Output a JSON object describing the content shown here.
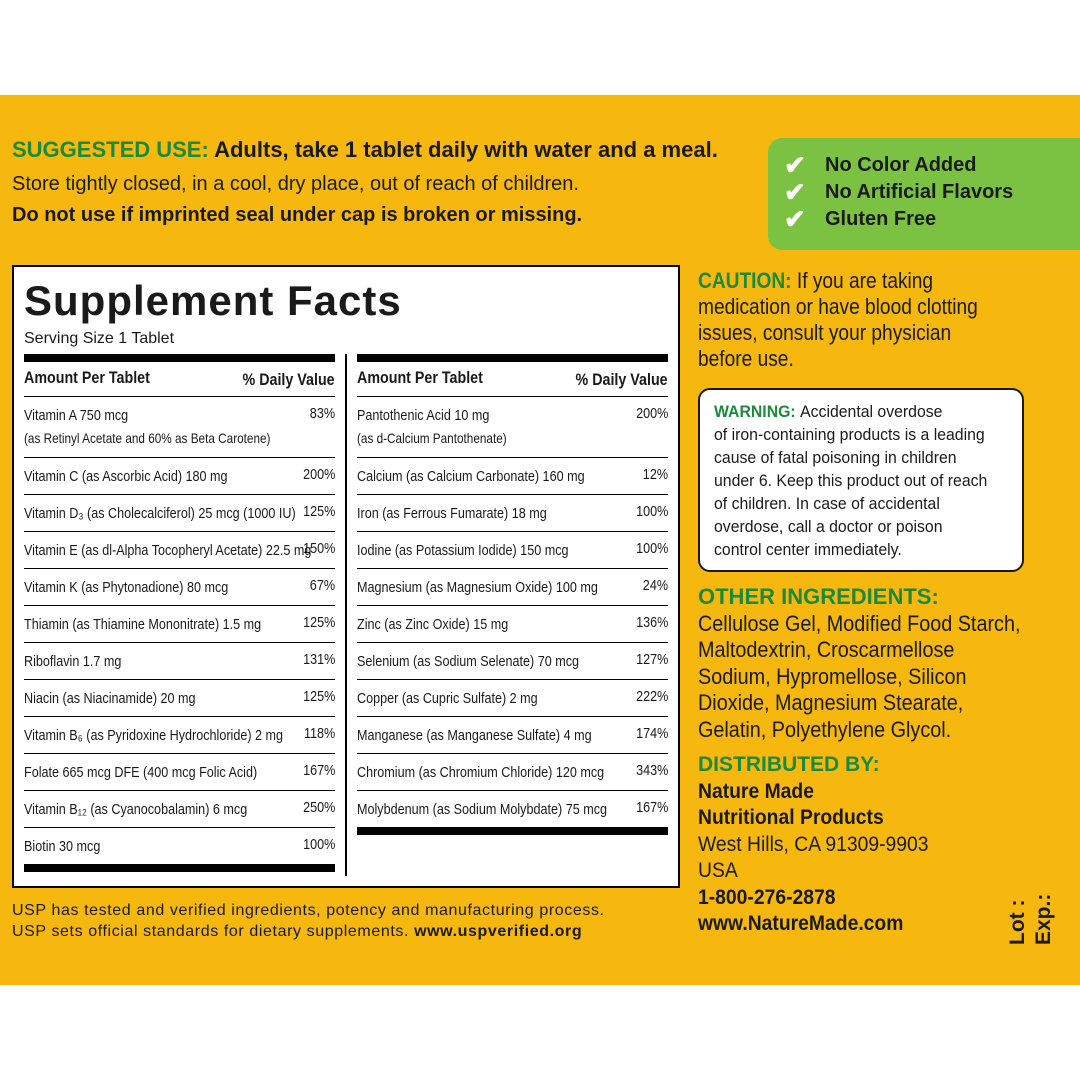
{
  "suggested_use": {
    "label": "SUGGESTED USE:",
    "text": "Adults, take 1 tablet daily with water and a meal."
  },
  "storage": "Store tightly closed, in a cool, dry place, out of reach of children.",
  "seal_warning": "Do not use if imprinted seal under cap is broken or missing.",
  "badges": [
    "No Color Added",
    "No Artificial Flavors",
    "Gluten Free"
  ],
  "supplement_facts": {
    "title": "Supplement Facts",
    "serving_size": "Serving Size 1 Tablet",
    "columns": [
      {
        "header_amount": "Amount Per Tablet",
        "header_dv": "% Daily Value",
        "rows": [
          {
            "name": [
              "Vitamin A 750 mcg",
              "(as Retinyl Acetate and 60% as Beta Carotene)"
            ],
            "dv": "83%"
          },
          {
            "name": [
              "Vitamin C (as Ascorbic Acid) 180 mg"
            ],
            "dv": "200%"
          },
          {
            "name": [
              "Vitamin D₃ (as Cholecalciferol) 25 mcg (1000 IU)"
            ],
            "dv": "125%"
          },
          {
            "name": [
              "Vitamin E (as dl-Alpha Tocopheryl Acetate) 22.5 mg"
            ],
            "dv": "150%"
          },
          {
            "name": [
              "Vitamin K (as Phytonadione) 80 mcg"
            ],
            "dv": "67%"
          },
          {
            "name": [
              "Thiamin (as Thiamine Mononitrate) 1.5 mg"
            ],
            "dv": "125%"
          },
          {
            "name": [
              "Riboflavin 1.7 mg"
            ],
            "dv": "131%"
          },
          {
            "name": [
              "Niacin (as Niacinamide) 20 mg"
            ],
            "dv": "125%"
          },
          {
            "name": [
              "Vitamin B₆ (as Pyridoxine Hydrochloride) 2 mg"
            ],
            "dv": "118%"
          },
          {
            "name": [
              "Folate 665 mcg DFE (400 mcg Folic Acid)"
            ],
            "dv": "167%"
          },
          {
            "name": [
              "Vitamin B₁₂ (as Cyanocobalamin) 6 mcg"
            ],
            "dv": "250%"
          },
          {
            "name": [
              "Biotin 30 mcg"
            ],
            "dv": "100%"
          }
        ]
      },
      {
        "header_amount": "Amount Per Tablet",
        "header_dv": "% Daily Value",
        "rows": [
          {
            "name": [
              "Pantothenic Acid 10 mg",
              "(as d-Calcium Pantothenate)"
            ],
            "dv": "200%"
          },
          {
            "name": [
              "Calcium (as Calcium Carbonate) 160 mg"
            ],
            "dv": "12%"
          },
          {
            "name": [
              "Iron (as Ferrous Fumarate) 18 mg"
            ],
            "dv": "100%"
          },
          {
            "name": [
              "Iodine (as Potassium Iodide) 150 mcg"
            ],
            "dv": "100%"
          },
          {
            "name": [
              "Magnesium (as Magnesium Oxide) 100 mg"
            ],
            "dv": "24%"
          },
          {
            "name": [
              "Zinc (as Zinc Oxide) 15 mg"
            ],
            "dv": "136%"
          },
          {
            "name": [
              "Selenium (as Sodium Selenate) 70 mcg"
            ],
            "dv": "127%"
          },
          {
            "name": [
              "Copper (as Cupric Sulfate) 2 mg"
            ],
            "dv": "222%"
          },
          {
            "name": [
              "Manganese (as Manganese Sulfate) 4 mg"
            ],
            "dv": "174%"
          },
          {
            "name": [
              "Chromium (as Chromium Chloride) 120 mcg"
            ],
            "dv": "343%"
          },
          {
            "name": [
              "Molybdenum (as Sodium Molybdate) 75 mcg"
            ],
            "dv": "167%"
          }
        ]
      }
    ]
  },
  "usp_note": {
    "line1": "USP has tested and verified ingredients, potency and manufacturing process.",
    "line2": "USP sets official standards for dietary supplements.",
    "url": "www.uspverified.org"
  },
  "caution": {
    "label": "CAUTION:",
    "lines": [
      "If you are taking",
      "medication or have blood clotting",
      "issues, consult your physician",
      "before use."
    ]
  },
  "warning": {
    "label": "WARNING:",
    "lines": [
      "Accidental overdose",
      "of iron-containing products is a leading",
      "cause of fatal poisoning in children",
      "under 6. Keep this product out of reach",
      "of children. In case of accidental",
      "overdose, call a doctor or poison",
      "control center immediately."
    ]
  },
  "other_ingredients": {
    "label": "OTHER INGREDIENTS:",
    "lines": [
      "Cellulose Gel, Modified Food Starch,",
      "Maltodextrin, Croscarmellose",
      "Sodium, Hypromellose, Silicon",
      "Dioxide, Magnesium Stearate,",
      "Gelatin, Polyethylene Glycol."
    ]
  },
  "distributor": {
    "label": "DISTRIBUTED BY:",
    "name_lines": [
      "Nature Made",
      "Nutritional Products"
    ],
    "address_lines": [
      "West Hills, CA 91309-9903",
      "USA"
    ],
    "contact_lines": [
      "1-800-276-2878",
      "www.NatureMade.com"
    ]
  },
  "lot": "Lot :",
  "exp": "Exp.:"
}
